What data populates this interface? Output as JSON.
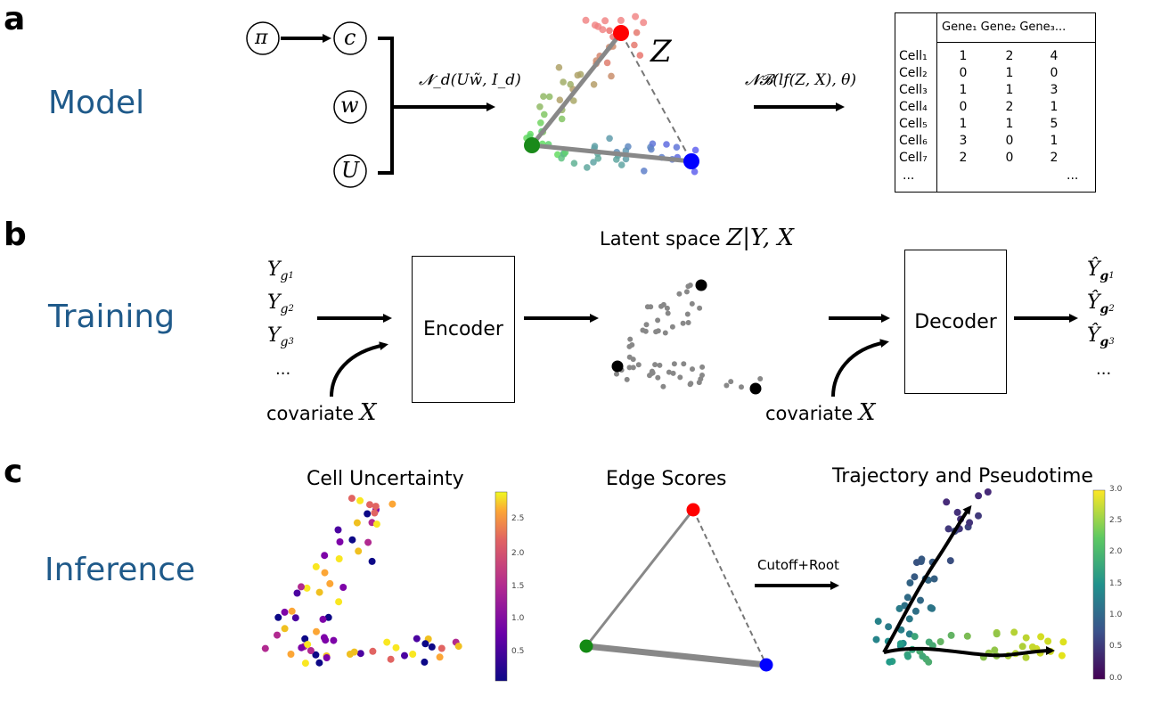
{
  "panels": {
    "a": {
      "letter": "a",
      "section": "Model",
      "nodes": {
        "pi": "π",
        "c": "c",
        "w": "w",
        "u": "U"
      },
      "normal_label": "𝓝_d(Uw̃, I_d)",
      "z_label": "Z",
      "nb_label": "𝓝𝓑(lf(Z, X), θ)",
      "table": {
        "header": [
          "Gene₁",
          "Gene₂",
          "Gene₃..."
        ],
        "rows": [
          {
            "cell": "Cell₁",
            "values": [
              "1",
              "2",
              "4"
            ]
          },
          {
            "cell": "Cell₂",
            "values": [
              "0",
              "1",
              "0"
            ]
          },
          {
            "cell": "Cell₃",
            "values": [
              "1",
              "1",
              "3"
            ]
          },
          {
            "cell": "Cell₄",
            "values": [
              "0",
              "2",
              "1"
            ]
          },
          {
            "cell": "Cell₅",
            "values": [
              "1",
              "1",
              "5"
            ]
          },
          {
            "cell": "Cell₆",
            "values": [
              "3",
              "0",
              "1"
            ]
          },
          {
            "cell": "Cell₇",
            "values": [
              "2",
              "0",
              "2"
            ]
          }
        ],
        "ellipsis_left": "...",
        "ellipsis_right": "..."
      },
      "vertex_colors": {
        "top": "#ff0000",
        "left": "#1a8a1a",
        "right": "#0000ff"
      }
    },
    "b": {
      "letter": "b",
      "section": "Training",
      "inputs": [
        "Y",
        "Y",
        "Y",
        "..."
      ],
      "input_subs": [
        "g",
        "g",
        "g"
      ],
      "input_subsubs": [
        "1",
        "2",
        "3"
      ],
      "encoder": "Encoder",
      "decoder": "Decoder",
      "latent_title_text": "Latent space ",
      "latent_title_math": "Z|Y, X",
      "covariate_text": "covariate ",
      "covariate_math": "X",
      "outputs": [
        "Ŷ",
        "Ŷ",
        "Ŷ",
        "..."
      ]
    },
    "c": {
      "letter": "c",
      "section": "Inference",
      "titles": [
        "Cell Uncertainty",
        "Edge Scores",
        "Trajectory and Pseudotime"
      ],
      "cutoff_label": "Cutoff+Root",
      "colorbar1_ticks": [
        "2.5",
        "2.0",
        "1.5",
        "1.0",
        "0.5"
      ],
      "colorbar2_ticks": [
        "3.0",
        "2.5",
        "2.0",
        "1.5",
        "1.0",
        "0.5",
        "0.0"
      ],
      "edge_colors": {
        "top": "#ff0000",
        "left": "#138a13",
        "right": "#0000ff"
      }
    }
  }
}
